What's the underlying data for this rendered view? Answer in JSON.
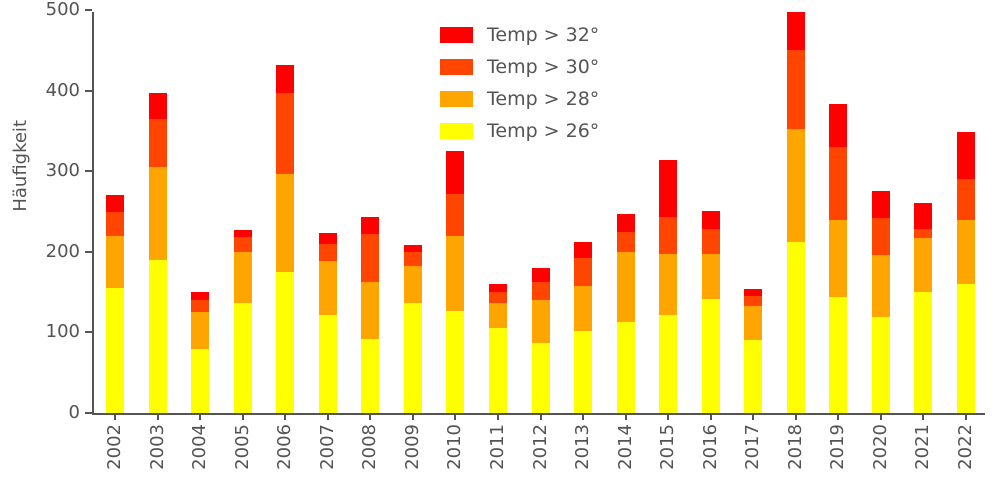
{
  "chart_data": {
    "type": "bar",
    "stacked": true,
    "title": "",
    "xlabel": "",
    "ylabel": "Häufigkeit",
    "ylim": [
      0,
      500
    ],
    "yticks": [
      0,
      100,
      200,
      300,
      400,
      500
    ],
    "grid": false,
    "axis_color": "#545454",
    "categories": [
      "2002",
      "2003",
      "2004",
      "2005",
      "2006",
      "2007",
      "2008",
      "2009",
      "2010",
      "2011",
      "2012",
      "2013",
      "2014",
      "2015",
      "2016",
      "2017",
      "2018",
      "2019",
      "2020",
      "2021",
      "2022"
    ],
    "series": [
      {
        "name": "Temp > 26°",
        "color": "#ffff00",
        "values": [
          155,
          190,
          80,
          137,
          175,
          122,
          92,
          136,
          127,
          106,
          87,
          102,
          113,
          121,
          141,
          90,
          212,
          144,
          119,
          150,
          160
        ]
      },
      {
        "name": "Temp > 28°",
        "color": "#ffa500",
        "values": [
          65,
          115,
          45,
          63,
          122,
          66,
          70,
          47,
          93,
          31,
          53,
          56,
          87,
          76,
          56,
          43,
          140,
          96,
          77,
          67,
          80
        ]
      },
      {
        "name": "Temp > 30°",
        "color": "#ff4500",
        "values": [
          30,
          60,
          15,
          18,
          100,
          22,
          60,
          17,
          52,
          13,
          23,
          34,
          25,
          46,
          31,
          12,
          98,
          90,
          46,
          11,
          50
        ]
      },
      {
        "name": "Temp > 32°",
        "color": "#ff0000",
        "values": [
          20,
          32,
          10,
          9,
          35,
          13,
          21,
          8,
          53,
          10,
          17,
          20,
          22,
          71,
          23,
          9,
          47,
          53,
          33,
          33,
          59
        ]
      }
    ],
    "legend_items": [
      {
        "label": "Temp > 32°",
        "color": "#ff0000"
      },
      {
        "label": "Temp > 30°",
        "color": "#ff4500"
      },
      {
        "label": "Temp > 28°",
        "color": "#ffa500"
      },
      {
        "label": "Temp > 26°",
        "color": "#ffff00"
      }
    ],
    "legend_position": "upper center"
  }
}
